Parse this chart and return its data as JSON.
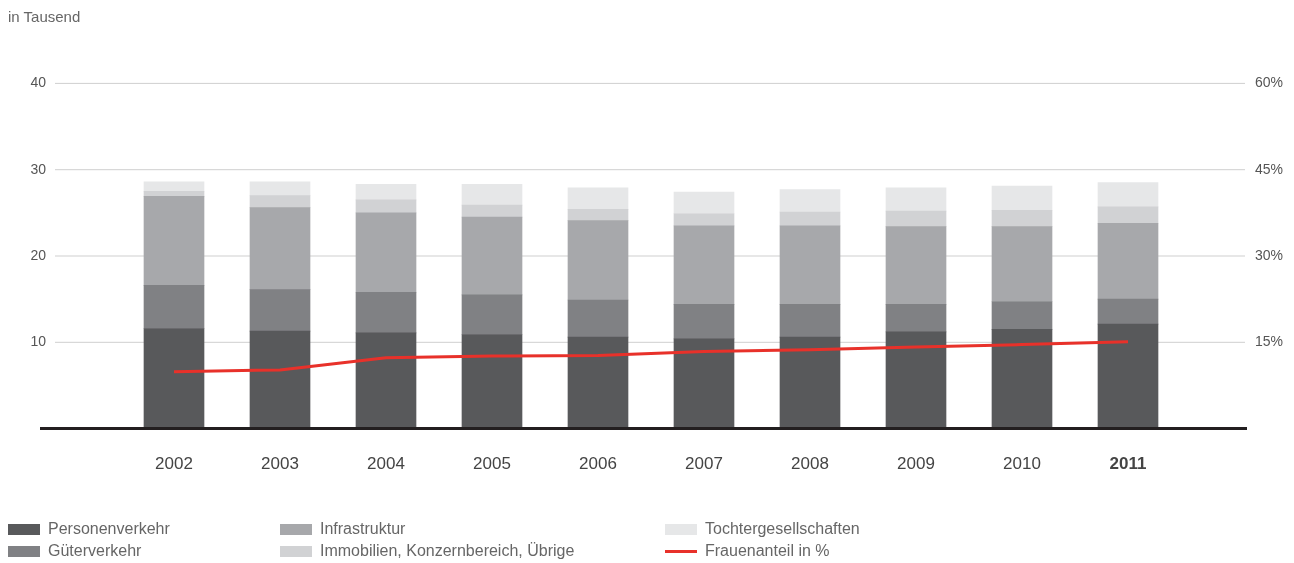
{
  "chart_data": {
    "type": "bar",
    "stacked": true,
    "ylabel": "in Tausend",
    "categories": [
      "2002",
      "2003",
      "2004",
      "2005",
      "2006",
      "2007",
      "2008",
      "2009",
      "2010",
      "2011"
    ],
    "series": [
      {
        "name": "Personenverkehr",
        "color": "#58595b",
        "values": [
          11.6,
          11.3,
          11.1,
          10.9,
          10.6,
          10.4,
          10.6,
          11.2,
          11.5,
          12.1
        ]
      },
      {
        "name": "Güterverkehr",
        "color": "#808184",
        "values": [
          5.0,
          4.8,
          4.7,
          4.6,
          4.3,
          4.0,
          3.8,
          3.2,
          3.2,
          2.9
        ]
      },
      {
        "name": "Infrastruktur",
        "color": "#a7a8ab",
        "values": [
          10.3,
          9.5,
          9.2,
          9.0,
          9.2,
          9.1,
          9.1,
          9.0,
          8.7,
          8.8
        ]
      },
      {
        "name": "Immobilien, Konzernbereich, Übrige",
        "color": "#d1d2d4",
        "values": [
          0.6,
          1.4,
          1.5,
          1.4,
          1.3,
          1.4,
          1.6,
          1.8,
          1.9,
          1.9
        ]
      },
      {
        "name": "Tochtergesellschaften",
        "color": "#e6e7e8",
        "values": [
          1.1,
          1.6,
          1.8,
          2.4,
          2.5,
          2.5,
          2.6,
          2.7,
          2.8,
          2.8
        ]
      },
      {
        "name": "Frauenanteil in %",
        "type": "line",
        "axis": "y2",
        "color": "#e8312a",
        "values": [
          9.9,
          10.2,
          12.3,
          12.6,
          12.7,
          13.4,
          13.7,
          14.2,
          14.6,
          15.1
        ]
      }
    ],
    "ylim": [
      0,
      40
    ],
    "yticks": [
      10,
      20,
      30,
      40
    ],
    "y2lim": [
      0,
      60
    ],
    "y2ticks": [
      {
        "value": 15,
        "label": "15%"
      },
      {
        "value": 30,
        "label": "30%"
      },
      {
        "value": 45,
        "label": "45%"
      },
      {
        "value": 60,
        "label": "60%"
      }
    ],
    "grid": "y",
    "legend": "bottom",
    "marker": "none",
    "line_style": "solid"
  }
}
